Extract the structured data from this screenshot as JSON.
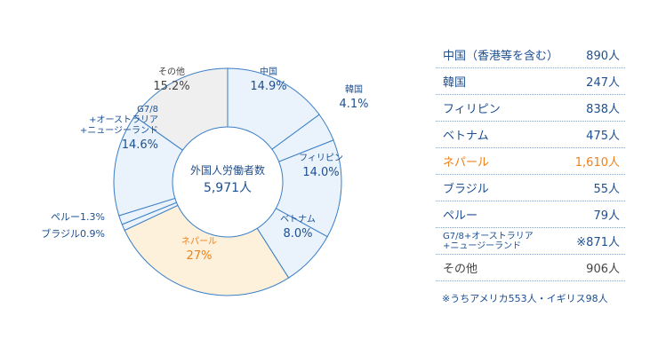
{
  "colors": {
    "default_slice": "#eaf3fb",
    "highlight_slice": "#fdf1dc",
    "other_slice": "#efefef",
    "slice_stroke": "#3a7ec6",
    "text_blue": "#1d4f91",
    "text_orange": "#f08018",
    "text_gray": "#444444"
  },
  "chart_data": {
    "type": "pie",
    "center_label": "外国人労働者数",
    "center_value": "5,971人",
    "slices": [
      {
        "name": "中国",
        "value": 14.9,
        "label": "14.9%",
        "style": "default"
      },
      {
        "name": "韓国",
        "value": 4.1,
        "label": "4.1%",
        "style": "default"
      },
      {
        "name": "フィリピン",
        "value": 14.0,
        "label": "14.0%",
        "style": "default"
      },
      {
        "name": "ベトナム",
        "value": 8.0,
        "label": "8.0%",
        "style": "default"
      },
      {
        "name": "ネパール",
        "value": 27,
        "label": "27%",
        "style": "highlight"
      },
      {
        "name": "ブラジル",
        "value": 0.9,
        "label": "0.9%",
        "style": "default"
      },
      {
        "name": "ペルー",
        "value": 1.3,
        "label": "1.3%",
        "style": "default"
      },
      {
        "name": "G7/8\n+オーストラリア\n+ニュージーランド",
        "value": 14.6,
        "label": "14.6%",
        "style": "default"
      },
      {
        "name": "その他",
        "value": 15.2,
        "label": "15.2%",
        "style": "other"
      }
    ]
  },
  "table": {
    "rows": [
      {
        "label": "中国（香港等を含む）",
        "value": "890人",
        "highlight": false
      },
      {
        "label": "韓国",
        "value": "247人",
        "highlight": false
      },
      {
        "label": "フィリピン",
        "value": "838人",
        "highlight": false
      },
      {
        "label": "ベトナム",
        "value": "475人",
        "highlight": false
      },
      {
        "label": "ネパール",
        "value": "1,610人",
        "highlight": true
      },
      {
        "label": "ブラジル",
        "value": "55人",
        "highlight": false
      },
      {
        "label": "ペルー",
        "value": "79人",
        "highlight": false
      },
      {
        "label": "G7/8+オーストラリア\n+ニュージーランド",
        "value": "※871人",
        "highlight": false,
        "small": true
      },
      {
        "label": "その他",
        "value": "906人",
        "highlight": false,
        "other": true
      }
    ],
    "note": "※うちアメリカ553人・イギリス98人"
  }
}
